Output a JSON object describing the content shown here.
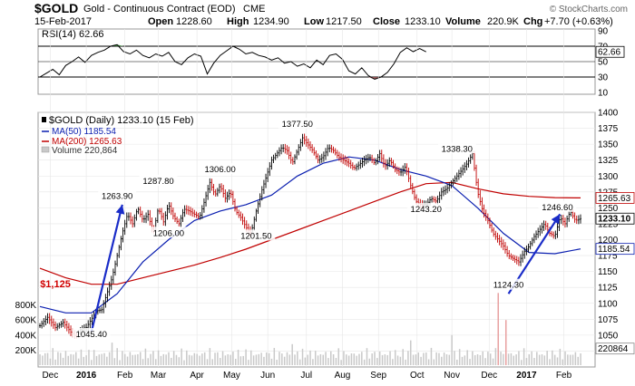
{
  "header": {
    "symbol": "$GOLD",
    "name": "Gold - Continuous Contract (EOD)",
    "exchange": "CME",
    "date": "15-Feb-2017",
    "open_label": "Open",
    "open": "1228.60",
    "high_label": "High",
    "high": "1234.90",
    "low_label": "Low",
    "low": "1217.50",
    "close_label": "Close",
    "close": "1233.10",
    "volume_label": "Volume",
    "volume": "220.9K",
    "chg_label": "Chg",
    "chg": "+7.70 (+0.63%)",
    "watermark": "© StockCharts.com"
  },
  "colors": {
    "price": "#000000",
    "ma50": "#0b1fb0",
    "ma200": "#c00000",
    "volume": "#c9c9c9",
    "arrow": "#1a2cc8",
    "rsi_over": "#3f8a3f",
    "rsi_under": "#9c5a5a",
    "annot_red": "#d00000"
  },
  "chart_data": [
    {
      "type": "line",
      "title": "RSI(14) 62.66",
      "legend_label": "RSI(14) 62.66",
      "indicator": "RSI(14)",
      "last_value": 62.66,
      "last_value_label": "62.66",
      "ylim": [
        10,
        90
      ],
      "yticks": [
        10,
        30,
        50,
        70,
        90
      ],
      "ytick_labels": [
        "10",
        "30",
        "50",
        "70",
        "90"
      ],
      "reference_lines": [
        30,
        50,
        70
      ],
      "series": [
        {
          "name": "RSI(14)",
          "x": [
            0,
            5,
            10,
            15,
            20,
            25,
            30,
            35,
            40,
            45,
            50,
            55,
            60,
            65,
            70,
            75,
            80,
            85,
            90,
            95,
            100,
            105,
            110,
            115,
            120,
            125,
            130,
            135,
            140,
            145,
            150,
            155,
            160,
            165,
            170,
            175,
            180,
            185,
            190,
            195,
            200,
            205,
            210,
            215,
            220,
            225,
            230,
            235,
            240,
            245,
            250,
            255,
            260,
            265,
            270,
            275,
            280,
            285,
            290,
            295,
            300
          ],
          "values": [
            30,
            35,
            40,
            33,
            45,
            50,
            56,
            49,
            58,
            62,
            65,
            70,
            72,
            63,
            60,
            65,
            58,
            55,
            60,
            57,
            62,
            50,
            46,
            55,
            60,
            57,
            34,
            48,
            58,
            64,
            70,
            66,
            60,
            62,
            58,
            56,
            52,
            55,
            48,
            50,
            44,
            47,
            42,
            52,
            46,
            58,
            60,
            53,
            38,
            34,
            42,
            32,
            27,
            30,
            36,
            47,
            62,
            68,
            63,
            67,
            62.66
          ]
        }
      ]
    },
    {
      "type": "line",
      "title": "$GOLD (Daily) 1233.10 (15 Feb)",
      "legend": [
        "$GOLD (Daily) 1233.10 (15 Feb)",
        "MA(50) 1185.54",
        "MA(200) 1265.63",
        "Volume 220,864"
      ],
      "ylim": [
        1000,
        1400
      ],
      "yticks": [
        1025,
        1050,
        1075,
        1100,
        1125,
        1150,
        1175,
        1200,
        1225,
        1250,
        1275,
        1300,
        1325,
        1350,
        1375,
        1400
      ],
      "ytick_labels": [
        "1025",
        "1050",
        "1075",
        "1100",
        "1125",
        "1150",
        "1175",
        "1200",
        "1225",
        "1250",
        "1275",
        "1300",
        "1325",
        "1350",
        "1375",
        "1400"
      ],
      "xticks": [
        {
          "x": 8,
          "label": "Dec"
        },
        {
          "x": 36,
          "label": "2016"
        },
        {
          "x": 66,
          "label": "Feb"
        },
        {
          "x": 92,
          "label": "Mar"
        },
        {
          "x": 122,
          "label": "Apr"
        },
        {
          "x": 149,
          "label": "May"
        },
        {
          "x": 177,
          "label": "Jun"
        },
        {
          "x": 207,
          "label": "Jul"
        },
        {
          "x": 235,
          "label": "Aug"
        },
        {
          "x": 263,
          "label": "Sep"
        },
        {
          "x": 293,
          "label": "Oct"
        },
        {
          "x": 320,
          "label": "Nov"
        },
        {
          "x": 349,
          "label": "Dec"
        },
        {
          "x": 378,
          "label": "2017"
        },
        {
          "x": 407,
          "label": "Feb"
        }
      ],
      "last_price": 1233.1,
      "last_price_label": "1233.10",
      "ma50_last_label": "1185.54",
      "ma200_last_label": "1265.63",
      "volume_last_label": "220864",
      "series": [
        {
          "name": "$GOLD",
          "x": [
            0,
            6,
            12,
            18,
            24,
            28,
            32,
            36,
            40,
            44,
            48,
            52,
            56,
            60,
            64,
            68,
            72,
            76,
            80,
            84,
            88,
            92,
            96,
            100,
            104,
            108,
            112,
            116,
            120,
            124,
            128,
            132,
            136,
            140,
            144,
            148,
            152,
            156,
            160,
            164,
            168,
            172,
            176,
            180,
            184,
            188,
            192,
            196,
            200,
            204,
            208,
            212,
            216,
            220,
            224,
            228,
            232,
            236,
            240,
            244,
            248,
            252,
            256,
            260,
            264,
            268,
            272,
            276,
            280,
            284,
            288,
            292,
            296,
            300,
            304,
            308,
            312,
            316,
            320,
            324,
            328,
            332,
            336,
            340,
            344,
            348,
            352,
            356,
            360,
            364,
            368,
            372,
            376,
            380,
            384,
            388,
            392,
            396,
            400,
            404,
            408,
            412,
            416,
            420
          ],
          "values": [
            1065,
            1078,
            1062,
            1070,
            1055,
            1048,
            1060,
            1062,
            1075,
            1088,
            1090,
            1115,
            1140,
            1175,
            1210,
            1240,
            1225,
            1250,
            1230,
            1240,
            1210,
            1250,
            1228,
            1255,
            1235,
            1225,
            1248,
            1245,
            1240,
            1235,
            1262,
            1290,
            1270,
            1285,
            1265,
            1275,
            1245,
            1235,
            1220,
            1210,
            1245,
            1275,
            1300,
            1325,
            1335,
            1345,
            1340,
            1320,
            1340,
            1360,
            1350,
            1340,
            1325,
            1330,
            1345,
            1340,
            1330,
            1325,
            1320,
            1312,
            1318,
            1325,
            1330,
            1320,
            1335,
            1315,
            1325,
            1310,
            1305,
            1315,
            1285,
            1260,
            1255,
            1255,
            1265,
            1260,
            1275,
            1280,
            1290,
            1300,
            1310,
            1320,
            1335,
            1275,
            1245,
            1230,
            1210,
            1200,
            1190,
            1175,
            1170,
            1165,
            1180,
            1190,
            1205,
            1215,
            1225,
            1210,
            1205,
            1235,
            1225,
            1245,
            1230,
            1233.1
          ]
        },
        {
          "name": "MA(50)",
          "x": [
            0,
            20,
            40,
            60,
            80,
            100,
            120,
            140,
            160,
            180,
            200,
            220,
            240,
            260,
            280,
            300,
            320,
            340,
            360,
            380,
            400,
            420
          ],
          "values": [
            1095,
            1085,
            1085,
            1115,
            1165,
            1200,
            1230,
            1245,
            1255,
            1270,
            1300,
            1320,
            1330,
            1325,
            1310,
            1300,
            1285,
            1250,
            1210,
            1180,
            1178,
            1185.54
          ]
        },
        {
          "name": "MA(200)",
          "x": [
            0,
            20,
            40,
            60,
            80,
            100,
            120,
            140,
            160,
            180,
            200,
            220,
            240,
            260,
            280,
            300,
            320,
            340,
            360,
            380,
            400,
            420
          ],
          "values": [
            1155,
            1140,
            1130,
            1130,
            1140,
            1150,
            1160,
            1172,
            1185,
            1200,
            1215,
            1230,
            1245,
            1260,
            1275,
            1288,
            1290,
            1280,
            1272,
            1268,
            1266,
            1265.63
          ]
        }
      ],
      "annotations": [
        {
          "x": 40,
          "y": 1045.4,
          "label": "1045.40",
          "color": "black"
        },
        {
          "x": 60,
          "y": 1263.9,
          "label": "1263.90",
          "color": "black"
        },
        {
          "x": 92,
          "y": 1287.8,
          "label": "1287.80",
          "color": "black"
        },
        {
          "x": 100,
          "y": 1206.0,
          "label": "1206.00",
          "color": "black"
        },
        {
          "x": 140,
          "y": 1306.0,
          "label": "1306.00",
          "color": "black"
        },
        {
          "x": 168,
          "y": 1201.5,
          "label": "1201.50",
          "color": "black"
        },
        {
          "x": 200,
          "y": 1377.5,
          "label": "1377.50",
          "color": "black"
        },
        {
          "x": 300,
          "y": 1243.2,
          "label": "1243.20",
          "color": "black"
        },
        {
          "x": 324,
          "y": 1338.3,
          "label": "1338.30",
          "color": "black"
        },
        {
          "x": 364,
          "y": 1124.3,
          "label": "1124.30",
          "color": "black"
        },
        {
          "x": 402,
          "y": 1246.6,
          "label": "1246.60",
          "color": "black"
        },
        {
          "x": 12,
          "y": 1125,
          "label": "$1,125",
          "color": "red"
        }
      ],
      "arrows": [
        {
          "from": [
            40,
            1055
          ],
          "to": [
            64,
            1255
          ]
        },
        {
          "from": [
            364,
            1115
          ],
          "to": [
            404,
            1240
          ]
        }
      ]
    },
    {
      "type": "bar",
      "title": "Volume 220,864",
      "ylim": [
        0,
        1000
      ],
      "yticks": [
        200,
        400,
        600,
        800
      ],
      "ytick_labels": [
        "200K",
        "400K",
        "600K",
        "800K"
      ],
      "spikes": [
        {
          "x": 56,
          "value": 300
        },
        {
          "x": 196,
          "value": 280
        },
        {
          "x": 288,
          "value": 330
        },
        {
          "x": 320,
          "value": 400
        },
        {
          "x": 356,
          "value": 960
        },
        {
          "x": 362,
          "value": 600
        }
      ],
      "typical_range": [
        60,
        230
      ],
      "last_value": 220864
    }
  ]
}
